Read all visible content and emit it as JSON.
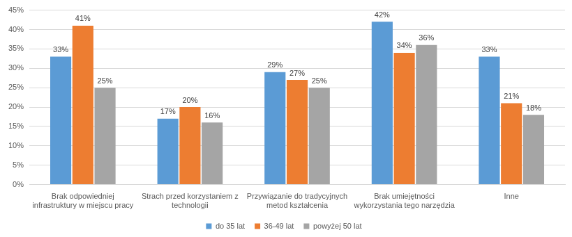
{
  "chart_data": {
    "type": "bar",
    "categories": [
      "Brak odpowiedniej infrastruktury w miejscu pracy",
      "Strach przed korzystaniem z technologii",
      "Przywiązanie do tradycyjnych metod kształcenia",
      "Brak umiejętności wykorzystania tego narzędzia",
      "Inne"
    ],
    "series": [
      {
        "name": "do 35 lat",
        "color": "#5b9bd5",
        "values": [
          33,
          17,
          29,
          42,
          33
        ],
        "value_labels": [
          "33%",
          "17%",
          "29%",
          "42%",
          "33%"
        ]
      },
      {
        "name": "36-49 lat",
        "color": "#ed7d31",
        "values": [
          41,
          20,
          27,
          34,
          21
        ],
        "value_labels": [
          "41%",
          "20%",
          "27%",
          "34%",
          "21%"
        ]
      },
      {
        "name": "powyżej 50 lat",
        "color": "#a5a5a5",
        "values": [
          25,
          16,
          25,
          36,
          18
        ],
        "value_labels": [
          "25%",
          "16%",
          "25%",
          "36%",
          "18%"
        ]
      }
    ],
    "ylim": [
      0,
      45
    ],
    "yticks": [
      {
        "value": 0,
        "label": "0%"
      },
      {
        "value": 5,
        "label": "5%"
      },
      {
        "value": 10,
        "label": "10%"
      },
      {
        "value": 15,
        "label": "15%"
      },
      {
        "value": 20,
        "label": "20%"
      },
      {
        "value": 25,
        "label": "25%"
      },
      {
        "value": 30,
        "label": "30%"
      },
      {
        "value": 35,
        "label": "35%"
      },
      {
        "value": 40,
        "label": "40%"
      },
      {
        "value": 45,
        "label": "45%"
      }
    ],
    "grid": true,
    "legend": "bottom",
    "data_labels": true
  }
}
